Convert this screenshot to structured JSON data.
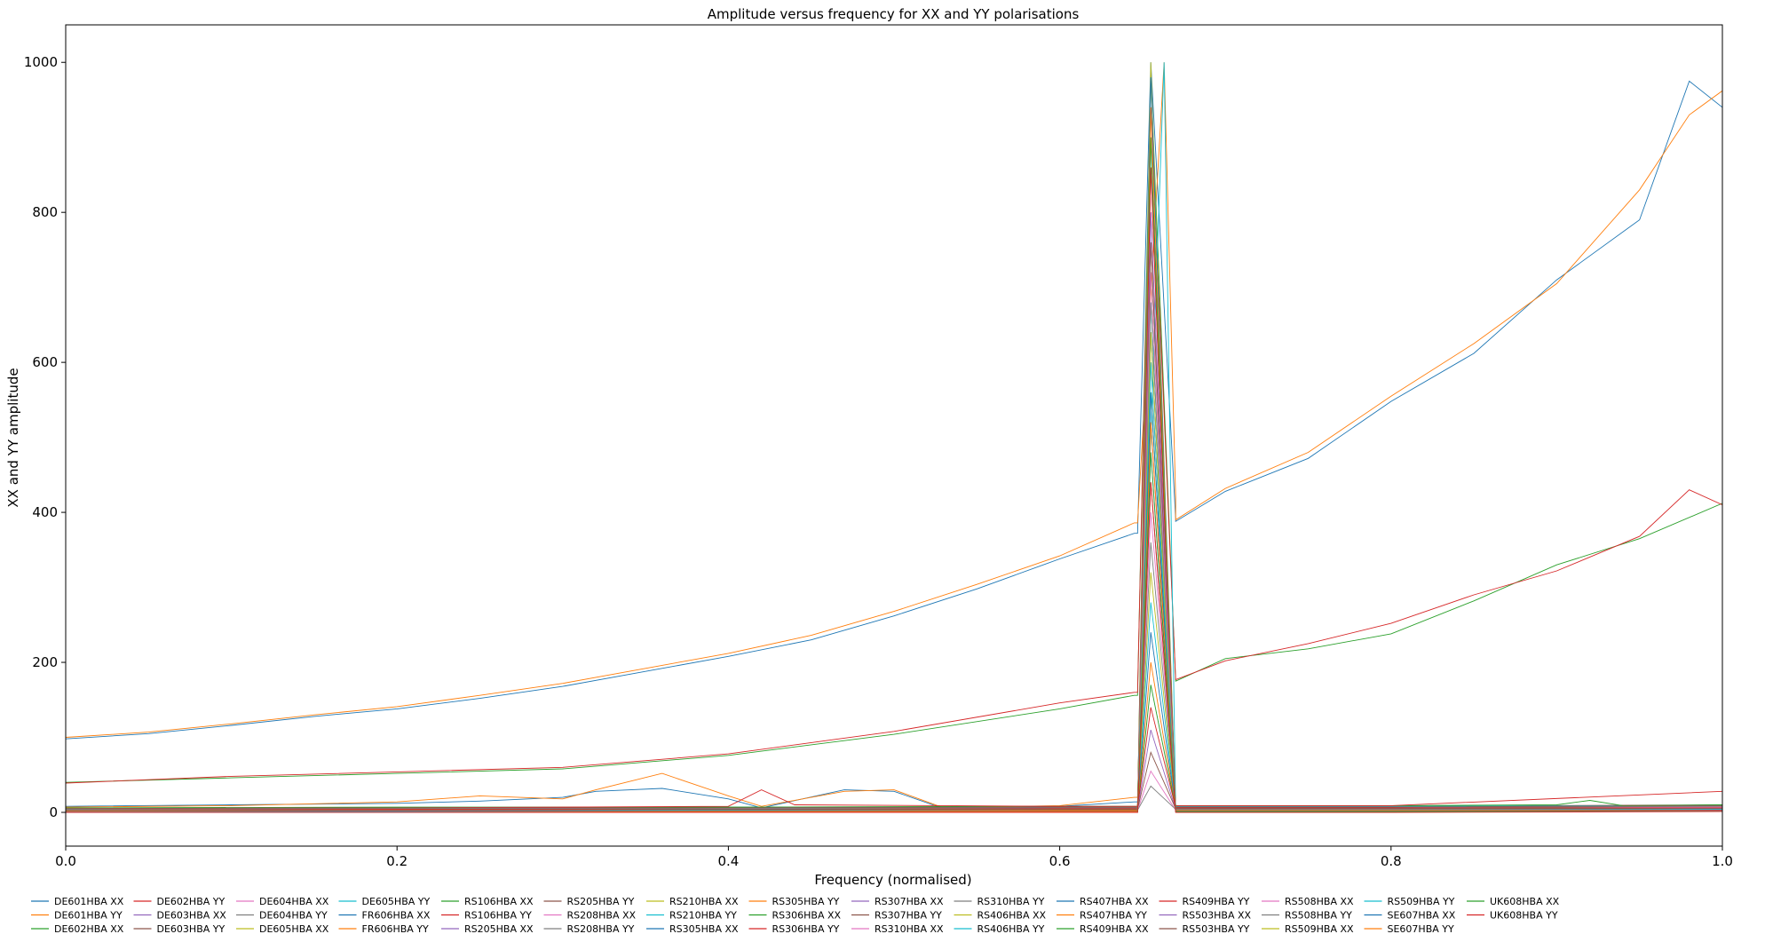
{
  "chart_data": {
    "type": "line",
    "title": "Amplitude versus frequency for XX and YY polarisations",
    "xlabel": "Frequency (normalised)",
    "ylabel": "XX and YY amplitude",
    "xlim": [
      0.0,
      1.0
    ],
    "ylim": [
      -45,
      1050
    ],
    "xticks": [
      "0.0",
      "0.2",
      "0.4",
      "0.6",
      "0.8",
      "1.0"
    ],
    "yticks": [
      "0",
      "200",
      "400",
      "600",
      "800",
      "1000"
    ],
    "grid": false,
    "legend_position": "bottom",
    "legend_columns": 17,
    "colors": [
      "#1f77b4",
      "#ff7f0e",
      "#2ca02c",
      "#d62728",
      "#9467bd",
      "#8c564b",
      "#e377c2",
      "#7f7f7f",
      "#bcbd22",
      "#17becf"
    ],
    "series": [
      {
        "name": "DE601HBA XX",
        "x": [
          0,
          0.05,
          0.1,
          0.15,
          0.2,
          0.25,
          0.3,
          0.35,
          0.4,
          0.45,
          0.5,
          0.55,
          0.6,
          0.645,
          0.66,
          0.67,
          0.7,
          0.75,
          0.8,
          0.85,
          0.9,
          0.95,
          0.98,
          1.0
        ],
        "y": [
          98,
          105,
          116,
          128,
          138,
          152,
          168,
          188,
          208,
          230,
          262,
          298,
          338,
          372,
          392,
          388,
          428,
          472,
          548,
          612,
          710,
          790,
          975,
          940
        ]
      },
      {
        "name": "DE601HBA YY",
        "x": [
          0,
          0.05,
          0.1,
          0.15,
          0.2,
          0.25,
          0.3,
          0.35,
          0.4,
          0.45,
          0.5,
          0.55,
          0.6,
          0.645,
          0.66,
          0.67,
          0.7,
          0.75,
          0.8,
          0.85,
          0.9,
          0.95,
          0.98,
          1.0
        ],
        "y": [
          100,
          107,
          118,
          130,
          141,
          156,
          172,
          192,
          212,
          236,
          268,
          304,
          342,
          386,
          420,
          390,
          432,
          480,
          555,
          625,
          705,
          830,
          930,
          962
        ]
      },
      {
        "name": "DE602HBA XX",
        "x": [
          0,
          0.1,
          0.2,
          0.3,
          0.4,
          0.5,
          0.6,
          0.645,
          0.67,
          0.7,
          0.75,
          0.8,
          0.85,
          0.9,
          0.95,
          1.0
        ],
        "y": [
          40,
          46,
          52,
          58,
          76,
          104,
          138,
          156,
          175,
          205,
          218,
          238,
          282,
          330,
          365,
          412
        ]
      },
      {
        "name": "DE602HBA YY",
        "x": [
          0,
          0.1,
          0.2,
          0.3,
          0.4,
          0.5,
          0.6,
          0.645,
          0.67,
          0.7,
          0.75,
          0.8,
          0.85,
          0.9,
          0.95,
          0.98,
          1.0
        ],
        "y": [
          39,
          48,
          54,
          60,
          78,
          108,
          146,
          160,
          177,
          202,
          225,
          252,
          290,
          322,
          368,
          430,
          410
        ]
      },
      {
        "name": "DE603HBA XX",
        "x": [
          0,
          0.2,
          0.4,
          0.6,
          0.8,
          1.0
        ],
        "y": [
          3,
          5,
          6,
          6,
          7,
          9
        ]
      },
      {
        "name": "DE603HBA YY",
        "x": [
          0,
          0.2,
          0.4,
          0.6,
          0.8,
          1.0
        ],
        "y": [
          4,
          6,
          7,
          6,
          8,
          10
        ]
      },
      {
        "name": "DE604HBA XX",
        "x": [
          0,
          0.2,
          0.4,
          0.6,
          0.8,
          1.0
        ],
        "y": [
          3,
          4,
          5,
          5,
          6,
          7
        ]
      },
      {
        "name": "DE604HBA YY",
        "x": [
          0,
          0.2,
          0.4,
          0.6,
          0.8,
          1.0
        ],
        "y": [
          4,
          5,
          6,
          6,
          7,
          8
        ]
      },
      {
        "name": "DE605HBA XX",
        "x": [
          0,
          0.2,
          0.4,
          0.6,
          0.8,
          1.0
        ],
        "y": [
          5,
          6,
          6,
          7,
          7,
          9
        ]
      },
      {
        "name": "DE605HBA YY",
        "x": [
          0,
          0.2,
          0.4,
          0.6,
          0.8,
          1.0
        ],
        "y": [
          5,
          6,
          7,
          7,
          8,
          9
        ]
      },
      {
        "name": "FR606HBA XX",
        "x": [
          0,
          0.1,
          0.2,
          0.25,
          0.3,
          0.32,
          0.36,
          0.4,
          0.42,
          0.47,
          0.5,
          0.53,
          0.6,
          0.645,
          0.66,
          0.7,
          0.8,
          1.0
        ],
        "y": [
          8,
          10,
          12,
          15,
          20,
          28,
          32,
          18,
          6,
          30,
          28,
          5,
          8,
          14,
          5,
          4,
          5,
          6
        ]
      },
      {
        "name": "FR606HBA YY",
        "x": [
          0,
          0.1,
          0.2,
          0.25,
          0.3,
          0.32,
          0.36,
          0.4,
          0.42,
          0.47,
          0.5,
          0.53,
          0.6,
          0.645,
          0.66,
          0.7,
          0.8,
          1.0
        ],
        "y": [
          7,
          9,
          14,
          22,
          18,
          30,
          52,
          22,
          8,
          28,
          30,
          6,
          9,
          20,
          6,
          5,
          6,
          7
        ]
      },
      {
        "name": "RS106HBA XX",
        "x": [
          0,
          0.2,
          0.4,
          0.6,
          0.8,
          0.9,
          0.92,
          0.94,
          1.0
        ],
        "y": [
          6,
          7,
          7,
          8,
          9,
          10,
          16,
          9,
          10
        ]
      },
      {
        "name": "RS106HBA YY",
        "x": [
          0,
          0.2,
          0.4,
          0.42,
          0.44,
          0.6,
          0.8,
          1.0
        ],
        "y": [
          5,
          6,
          8,
          30,
          10,
          8,
          9,
          28
        ]
      },
      {
        "name": "RS205HBA XX",
        "x": [
          0,
          0.2,
          0.4,
          0.6,
          0.8,
          1.0
        ],
        "y": [
          4,
          5,
          6,
          6,
          7,
          8
        ]
      },
      {
        "name": "RS205HBA YY",
        "x": [
          0,
          0.2,
          0.4,
          0.6,
          0.8,
          1.0
        ],
        "y": [
          5,
          6,
          6,
          7,
          7,
          9
        ]
      },
      {
        "name": "RS208HBA XX",
        "x": [
          0,
          0.2,
          0.4,
          0.6,
          0.8,
          1.0
        ],
        "y": [
          3,
          4,
          5,
          5,
          6,
          7
        ]
      },
      {
        "name": "RS208HBA YY",
        "x": [
          0,
          0.2,
          0.4,
          0.6,
          0.8,
          1.0
        ],
        "y": [
          4,
          5,
          5,
          6,
          6,
          8
        ]
      },
      {
        "name": "RS210HBA XX",
        "x": [
          0,
          0.2,
          0.4,
          0.6,
          0.8,
          1.0
        ],
        "y": [
          2,
          3,
          4,
          4,
          5,
          6
        ]
      },
      {
        "name": "RS210HBA YY",
        "x": [
          0,
          0.2,
          0.4,
          0.6,
          0.8,
          1.0
        ],
        "y": [
          3,
          3,
          4,
          5,
          5,
          6
        ]
      },
      {
        "name": "RS305HBA XX",
        "x": [
          0,
          0.2,
          0.4,
          0.6,
          0.8,
          1.0
        ],
        "y": [
          2,
          3,
          3,
          4,
          4,
          5
        ]
      },
      {
        "name": "RS305HBA YY",
        "x": [
          0,
          0.2,
          0.4,
          0.6,
          0.8,
          1.0
        ],
        "y": [
          3,
          4,
          4,
          5,
          5,
          6
        ]
      },
      {
        "name": "RS306HBA XX",
        "x": [
          0,
          0.2,
          0.4,
          0.6,
          0.8,
          1.0
        ],
        "y": [
          2,
          3,
          4,
          4,
          5,
          5
        ]
      },
      {
        "name": "RS306HBA YY",
        "x": [
          0,
          0.2,
          0.4,
          0.6,
          0.8,
          1.0
        ],
        "y": [
          3,
          4,
          4,
          5,
          6,
          6
        ]
      },
      {
        "name": "RS307HBA XX",
        "x": [
          0,
          0.2,
          0.4,
          0.6,
          0.8,
          1.0
        ],
        "y": [
          2,
          2,
          3,
          3,
          4,
          5
        ]
      },
      {
        "name": "RS307HBA YY",
        "x": [
          0,
          0.2,
          0.4,
          0.6,
          0.8,
          1.0
        ],
        "y": [
          3,
          3,
          4,
          4,
          5,
          5
        ]
      },
      {
        "name": "RS310HBA XX",
        "x": [
          0,
          0.2,
          0.4,
          0.6,
          0.8,
          1.0
        ],
        "y": [
          1,
          2,
          2,
          3,
          3,
          4
        ]
      },
      {
        "name": "RS310HBA YY",
        "x": [
          0,
          0.2,
          0.4,
          0.6,
          0.8,
          1.0
        ],
        "y": [
          2,
          2,
          3,
          3,
          4,
          4
        ]
      },
      {
        "name": "RS406HBA XX",
        "x": [
          0,
          0.2,
          0.4,
          0.6,
          0.8,
          1.0
        ],
        "y": [
          1,
          2,
          2,
          2,
          3,
          3
        ]
      },
      {
        "name": "RS406HBA YY",
        "x": [
          0,
          0.2,
          0.4,
          0.6,
          0.8,
          1.0
        ],
        "y": [
          2,
          2,
          3,
          3,
          3,
          4
        ]
      },
      {
        "name": "RS407HBA XX",
        "x": [
          0,
          0.2,
          0.4,
          0.6,
          0.8,
          1.0
        ],
        "y": [
          1,
          1,
          2,
          2,
          2,
          3
        ]
      },
      {
        "name": "RS407HBA YY",
        "x": [
          0,
          0.2,
          0.4,
          0.6,
          0.8,
          1.0
        ],
        "y": [
          2,
          2,
          2,
          3,
          3,
          3
        ]
      },
      {
        "name": "RS409HBA XX",
        "x": [
          0,
          0.2,
          0.4,
          0.6,
          0.8,
          1.0
        ],
        "y": [
          1,
          1,
          1,
          2,
          2,
          2
        ]
      },
      {
        "name": "RS409HBA YY",
        "x": [
          0,
          0.2,
          0.4,
          0.6,
          0.8,
          1.0
        ],
        "y": [
          1,
          2,
          2,
          2,
          2,
          3
        ]
      },
      {
        "name": "RS503HBA XX",
        "x": [
          0,
          0.2,
          0.4,
          0.6,
          0.8,
          1.0
        ],
        "y": [
          1,
          1,
          1,
          1,
          2,
          2
        ]
      },
      {
        "name": "RS503HBA YY",
        "x": [
          0,
          0.2,
          0.4,
          0.6,
          0.8,
          1.0
        ],
        "y": [
          1,
          1,
          2,
          2,
          2,
          2
        ]
      },
      {
        "name": "RS508HBA XX",
        "x": [
          0,
          0.2,
          0.4,
          0.6,
          0.8,
          1.0
        ],
        "y": [
          0,
          1,
          1,
          1,
          1,
          2
        ]
      },
      {
        "name": "RS508HBA YY",
        "x": [
          0,
          0.2,
          0.4,
          0.6,
          0.8,
          1.0
        ],
        "y": [
          1,
          1,
          1,
          1,
          2,
          2
        ]
      },
      {
        "name": "RS509HBA XX",
        "x": [
          0,
          0.2,
          0.4,
          0.6,
          0.8,
          1.0
        ],
        "y": [
          0,
          0,
          1,
          1,
          1,
          1
        ]
      },
      {
        "name": "RS509HBA YY",
        "x": [
          0,
          0.2,
          0.4,
          0.6,
          0.8,
          1.0
        ],
        "y": [
          0,
          1,
          1,
          1,
          1,
          1
        ]
      },
      {
        "name": "SE607HBA XX",
        "x": [
          0,
          0.2,
          0.4,
          0.6,
          0.8,
          1.0
        ],
        "y": [
          0,
          0,
          0,
          1,
          1,
          1
        ]
      },
      {
        "name": "SE607HBA YY",
        "x": [
          0,
          0.2,
          0.4,
          0.6,
          0.8,
          1.0
        ],
        "y": [
          0,
          0,
          1,
          1,
          1,
          1
        ]
      },
      {
        "name": "UK608HBA XX",
        "x": [
          0,
          0.2,
          0.4,
          0.6,
          0.8,
          1.0
        ],
        "y": [
          0,
          0,
          0,
          0,
          1,
          1
        ]
      },
      {
        "name": "UK608HBA YY",
        "x": [
          0,
          0.2,
          0.4,
          0.6,
          0.8,
          1.0
        ],
        "y": [
          0,
          0,
          0,
          0,
          0,
          1
        ]
      }
    ],
    "spike": {
      "x_window": [
        0.647,
        0.67
      ],
      "peaks": [
        {
          "x": 0.655,
          "y": 1000
        },
        {
          "x": 0.663,
          "y": 1000
        },
        {
          "x": 0.655,
          "y": 980
        },
        {
          "x": 0.655,
          "y": 940
        },
        {
          "x": 0.655,
          "y": 900
        },
        {
          "x": 0.655,
          "y": 860
        },
        {
          "x": 0.655,
          "y": 800
        },
        {
          "x": 0.655,
          "y": 760
        },
        {
          "x": 0.655,
          "y": 720
        },
        {
          "x": 0.655,
          "y": 680
        },
        {
          "x": 0.655,
          "y": 640
        },
        {
          "x": 0.655,
          "y": 600
        },
        {
          "x": 0.655,
          "y": 560
        },
        {
          "x": 0.655,
          "y": 520
        },
        {
          "x": 0.655,
          "y": 480
        },
        {
          "x": 0.655,
          "y": 440
        },
        {
          "x": 0.655,
          "y": 400
        },
        {
          "x": 0.655,
          "y": 360
        },
        {
          "x": 0.655,
          "y": 320
        },
        {
          "x": 0.655,
          "y": 280
        },
        {
          "x": 0.655,
          "y": 240
        },
        {
          "x": 0.655,
          "y": 200
        },
        {
          "x": 0.655,
          "y": 170
        },
        {
          "x": 0.655,
          "y": 140
        },
        {
          "x": 0.655,
          "y": 110
        },
        {
          "x": 0.655,
          "y": 80
        },
        {
          "x": 0.655,
          "y": 55
        },
        {
          "x": 0.655,
          "y": 35
        }
      ]
    }
  }
}
